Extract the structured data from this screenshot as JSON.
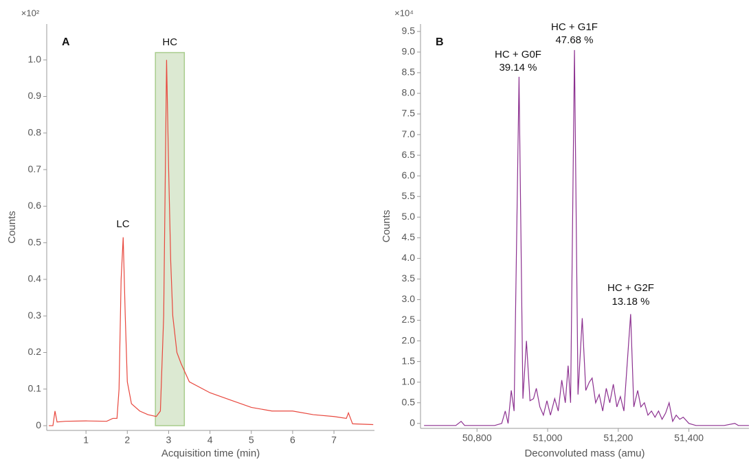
{
  "chart_data": [
    {
      "type": "line",
      "panel_label": "A",
      "ylabel": "Counts",
      "xlabel": "Acquisition time (min)",
      "y_multiplier": "×10²",
      "xlim": [
        0.05,
        7.98
      ],
      "ylim": [
        -0.013,
        1.098
      ],
      "xticks": [
        1,
        2,
        3,
        4,
        5,
        6,
        7
      ],
      "yticks": [
        0,
        0.1,
        0.2,
        0.3,
        0.4,
        0.5,
        0.6,
        0.7,
        0.8,
        0.9,
        {
          "value": 1,
          "label": "1.0"
        }
      ],
      "highlight": {
        "label": "HC",
        "x": [
          2.68,
          3.38
        ],
        "color": "#dce9d2",
        "edge_color": "#a8cc8c"
      },
      "annotations": [
        {
          "text": "LC"
        }
      ],
      "series": [
        {
          "color": "#e8463c",
          "x": [
            0.1,
            0.2,
            0.25,
            0.3,
            0.5,
            1.0,
            1.5,
            1.65,
            1.75,
            1.8,
            1.85,
            1.9,
            1.95,
            2.0,
            2.1,
            2.3,
            2.5,
            2.7,
            2.8,
            2.88,
            2.95,
            3.0,
            3.05,
            3.1,
            3.2,
            3.3,
            3.5,
            4.0,
            4.5,
            5.0,
            5.5,
            6.0,
            6.5,
            7.0,
            7.3,
            7.35,
            7.45,
            7.95
          ],
          "values": [
            0.0,
            0.0,
            0.04,
            0.01,
            0.012,
            0.013,
            0.012,
            0.02,
            0.02,
            0.1,
            0.4,
            0.515,
            0.3,
            0.12,
            0.06,
            0.04,
            0.03,
            0.025,
            0.04,
            0.3,
            1.0,
            0.7,
            0.45,
            0.3,
            0.2,
            0.17,
            0.12,
            0.09,
            0.07,
            0.05,
            0.04,
            0.04,
            0.03,
            0.025,
            0.02,
            0.035,
            0.005,
            0.003
          ]
        }
      ]
    },
    {
      "type": "line",
      "panel_label": "B",
      "ylabel": "Counts",
      "xlabel": "Deconvoluted mass (amu)",
      "y_multiplier": "×10⁴",
      "xlim": [
        50640,
        51570
      ],
      "ylim": [
        -0.12,
        9.68
      ],
      "xticks": [
        {
          "value": 50800,
          "label": "50,800"
        },
        {
          "value": 51000,
          "label": "51,000"
        },
        {
          "value": 51200,
          "label": "51,200"
        },
        {
          "value": 51400,
          "label": "51,400"
        }
      ],
      "yticks": [
        0,
        0.5,
        {
          "value": 1,
          "label": "1.0"
        },
        1.5,
        {
          "value": 2,
          "label": "2.0"
        },
        2.5,
        {
          "value": 3,
          "label": "3.0"
        },
        3.5,
        {
          "value": 4,
          "label": "4.0"
        },
        4.5,
        {
          "value": 5,
          "label": "5.0"
        },
        5.5,
        {
          "value": 6,
          "label": "6.0"
        },
        6.5,
        {
          "value": 7,
          "label": "7.0"
        },
        7.5,
        {
          "value": 8,
          "label": "8.0"
        },
        8.5,
        {
          "value": 9,
          "label": "9.0"
        },
        9.5
      ],
      "annotations": [
        {
          "text": "HC + G0F",
          "percent": "39.14 %"
        },
        {
          "text": "HC + G1F",
          "percent": "47.68 %"
        },
        {
          "text": "HC + G2F",
          "percent": "13.18 %"
        }
      ],
      "series": [
        {
          "color": "#8b2f8f",
          "x": [
            50650,
            50740,
            50755,
            50765,
            50850,
            50870,
            50880,
            50888,
            50897,
            50905,
            50919,
            50930,
            50940,
            50950,
            50960,
            50968,
            50978,
            50988,
            50998,
            51008,
            51020,
            51030,
            51040,
            51050,
            51058,
            51065,
            51076,
            51086,
            51098,
            51108,
            51118,
            51126,
            51136,
            51146,
            51156,
            51166,
            51176,
            51186,
            51196,
            51206,
            51216,
            51235,
            51244,
            51255,
            51264,
            51274,
            51284,
            51294,
            51304,
            51314,
            51324,
            51334,
            51344,
            51354,
            51364,
            51374,
            51384,
            51400,
            51420,
            51500,
            51530,
            51540,
            51570
          ],
          "values": [
            -0.05,
            -0.05,
            0.05,
            -0.05,
            -0.05,
            0.0,
            0.3,
            0.0,
            0.8,
            0.3,
            8.4,
            0.6,
            2.0,
            0.55,
            0.6,
            0.85,
            0.4,
            0.2,
            0.55,
            0.2,
            0.6,
            0.3,
            1.05,
            0.5,
            1.4,
            0.5,
            9.05,
            0.7,
            2.55,
            0.8,
            1.0,
            1.1,
            0.5,
            0.7,
            0.3,
            0.85,
            0.5,
            0.95,
            0.4,
            0.65,
            0.3,
            2.65,
            0.4,
            0.8,
            0.4,
            0.5,
            0.2,
            0.3,
            0.15,
            0.3,
            0.1,
            0.25,
            0.5,
            0.05,
            0.2,
            0.1,
            0.15,
            0.0,
            -0.05,
            -0.05,
            0.0,
            -0.05,
            -0.05
          ]
        }
      ]
    }
  ]
}
